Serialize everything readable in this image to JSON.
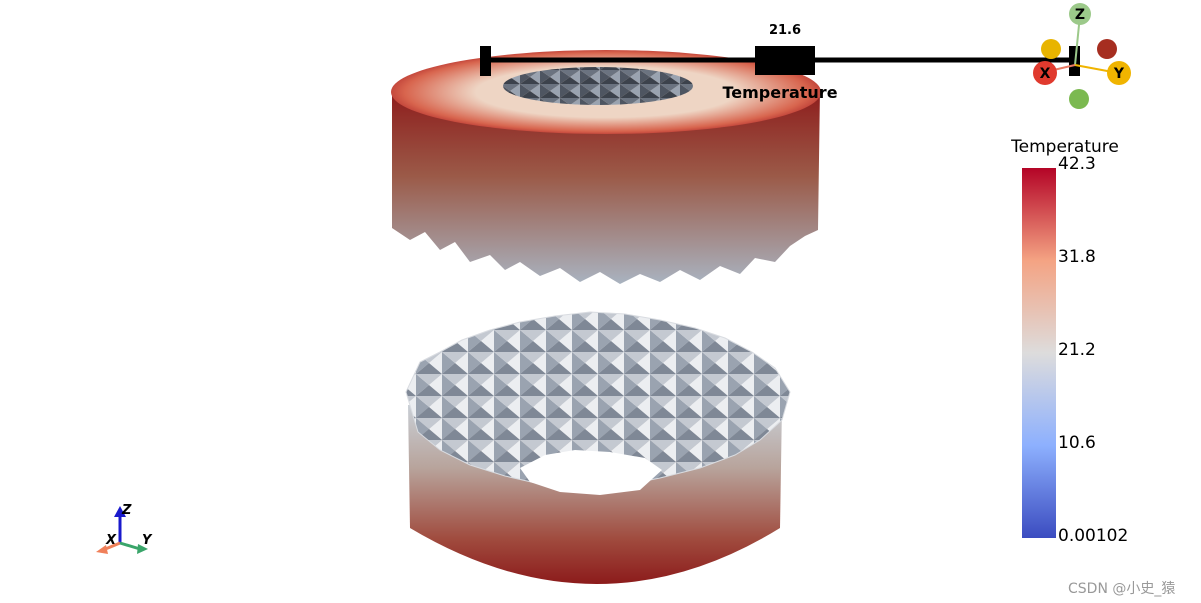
{
  "slider": {
    "value_label": "21.6",
    "title": "Temperature"
  },
  "colorbar": {
    "title": "Temperature",
    "ticks": [
      "42.3",
      "31.8",
      "21.2",
      "10.6",
      "0.00102"
    ],
    "colors": [
      "#3b4cc0",
      "#8db0fe",
      "#dddcdc",
      "#f4a383",
      "#b40426"
    ]
  },
  "orientation_widget": {
    "x_label": "X",
    "y_label": "Y",
    "z_label": "Z",
    "colors": {
      "x": "#e03a2e",
      "y": "#f0b400",
      "z": "#7bb950",
      "x_neg": "#a62e20",
      "y_neg": "#e8b400",
      "z_neg": "#7bb950"
    }
  },
  "axes_triad": {
    "x_label": "X",
    "y_label": "Y",
    "z_label": "Z",
    "colors": {
      "x": "#f0805a",
      "y": "#3aa56a",
      "z": "#1a1acc"
    }
  },
  "watermark": "CSDN @小史_猿"
}
